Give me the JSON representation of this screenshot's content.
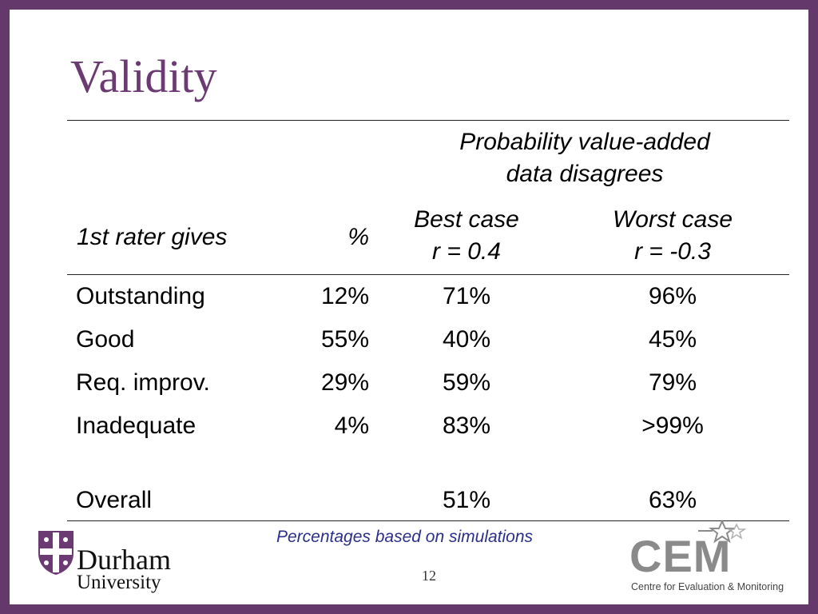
{
  "slide": {
    "title": "Validity",
    "caption": "Percentages based on simulations",
    "page_number": "12"
  },
  "table": {
    "group_header_line1": "Probability value-added",
    "group_header_line2": "data disagrees",
    "col_rater": "1st rater gives",
    "col_pct": "%",
    "col_best_line1": "Best case",
    "col_best_line2": "r = 0.4",
    "col_worst_line1": "Worst case",
    "col_worst_line2": "r = -0.3",
    "rows": [
      {
        "label": "Outstanding",
        "pct": "12%",
        "best": "71%",
        "worst": "96%"
      },
      {
        "label": "Good",
        "pct": "55%",
        "best": "40%",
        "worst": "45%"
      },
      {
        "label": "Req. improv.",
        "pct": "29%",
        "best": "59%",
        "worst": "79%"
      },
      {
        "label": "Inadequate",
        "pct": "4%",
        "best": "83%",
        "worst": ">99%"
      }
    ],
    "overall": {
      "label": "Overall",
      "best": "51%",
      "worst": "63%"
    }
  },
  "logos": {
    "durham_name": "Durham",
    "durham_sub": "University",
    "cem_name": "CEM",
    "cem_sub": "Centre for Evaluation & Monitoring"
  },
  "colors": {
    "frame": "#64386a",
    "title": "#6b3a72",
    "caption": "#2a2f8a",
    "cem_grey": "#8a8a8a"
  }
}
